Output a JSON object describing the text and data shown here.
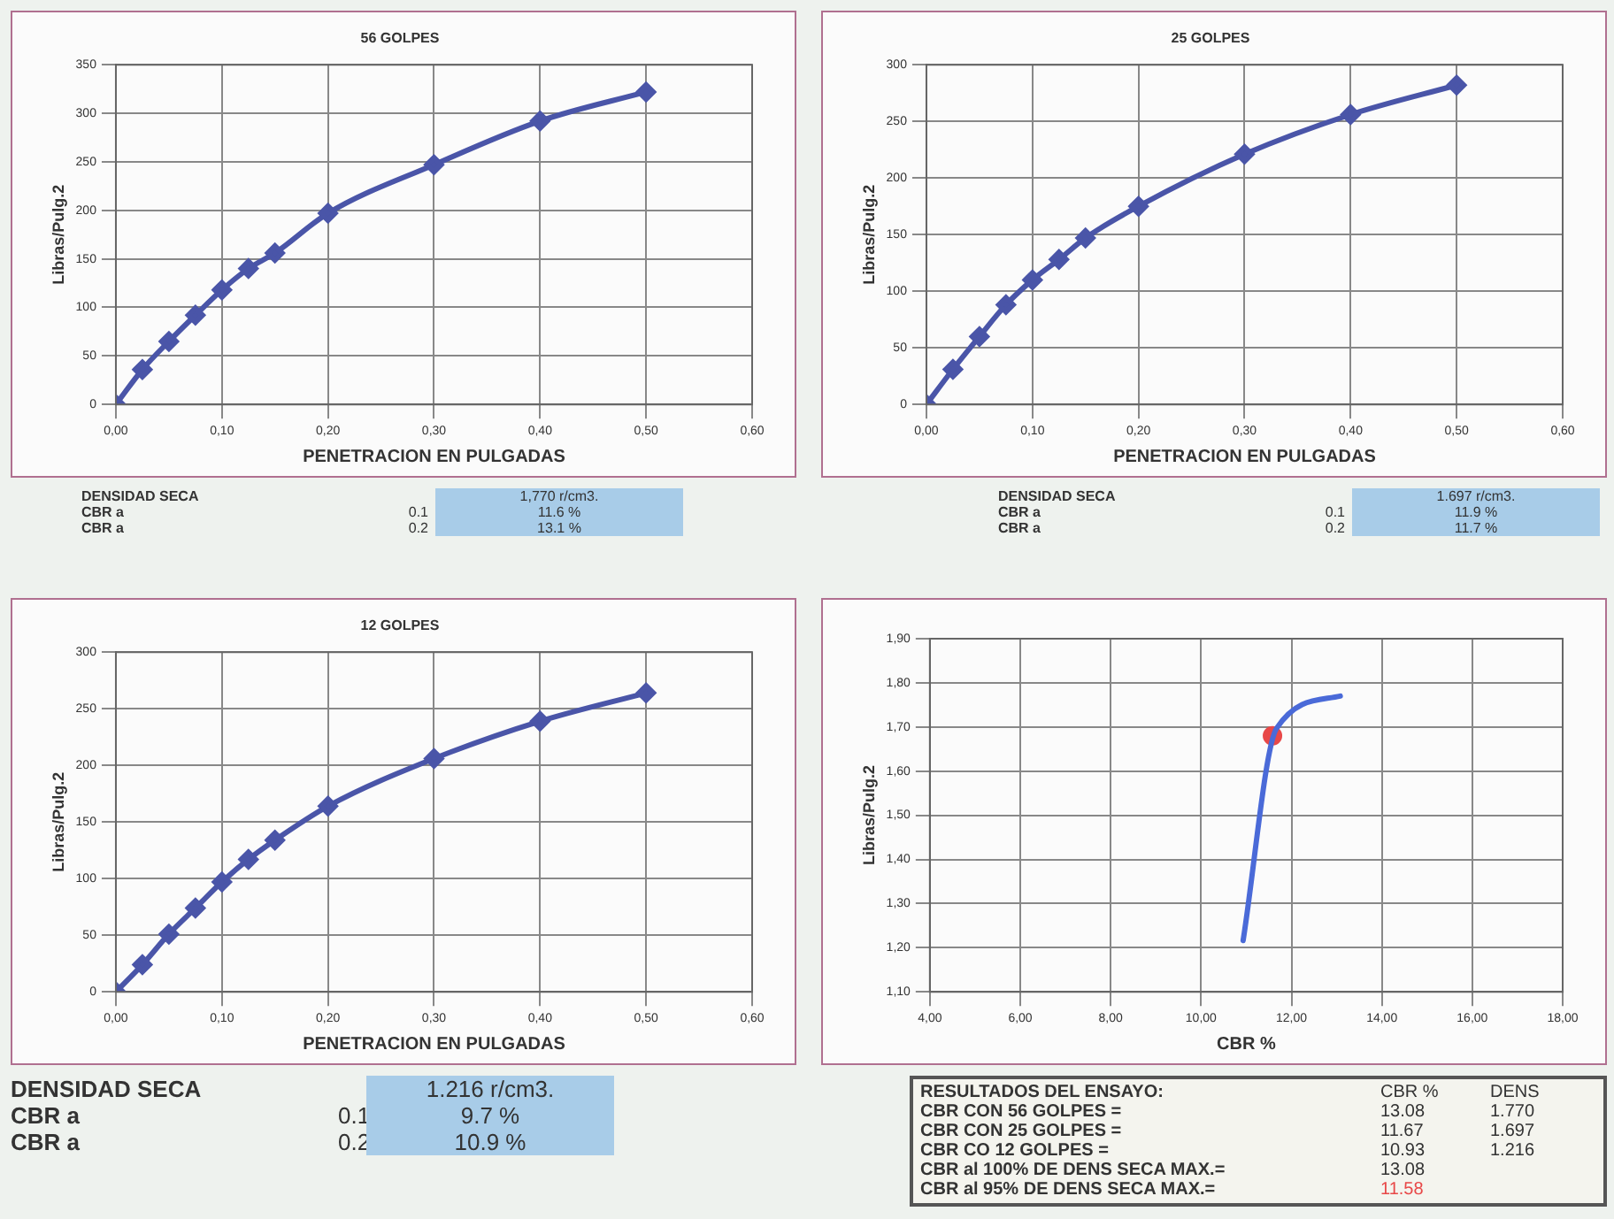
{
  "chart_data": [
    {
      "type": "line",
      "title": "56 GOLPES",
      "xlabel": "PENETRACION EN PULGADAS",
      "ylabel": "Libras/Pulg.2",
      "x": [
        0,
        0.025,
        0.05,
        0.075,
        0.1,
        0.125,
        0.15,
        0.2,
        0.3,
        0.4,
        0.5
      ],
      "series": [
        {
          "color": "#4a55a8",
          "values": [
            0,
            36,
            65,
            92,
            118,
            140,
            156,
            197,
            247,
            292,
            322
          ]
        }
      ],
      "xlim": [
        0,
        0.6
      ],
      "xticks": [
        {
          "value": 0,
          "label": "0,00"
        },
        {
          "value": 0.1,
          "label": "0,10"
        },
        {
          "value": 0.2,
          "label": "0,20"
        },
        {
          "value": 0.3,
          "label": "0,30"
        },
        {
          "value": 0.4,
          "label": "0,40"
        },
        {
          "value": 0.5,
          "label": "0,50"
        },
        {
          "value": 0.6,
          "label": "0,60"
        }
      ],
      "ylim": [
        0,
        350
      ],
      "yticks": [
        0,
        50,
        100,
        150,
        200,
        250,
        300,
        350
      ],
      "grid": true,
      "legend": false,
      "marker": "diamond",
      "line_style": "solid",
      "annotations": [
        "DENSIDAD SECA",
        "1,770 r/cm3.",
        "CBR a",
        "0.1",
        "11.6 %",
        "CBR a",
        "0.2",
        "13.1 %"
      ]
    },
    {
      "type": "line",
      "title": "25 GOLPES",
      "xlabel": "PENETRACION EN PULGADAS",
      "ylabel": "Libras/Pulg.2",
      "x": [
        0,
        0.025,
        0.05,
        0.075,
        0.1,
        0.125,
        0.15,
        0.2,
        0.3,
        0.4,
        0.5
      ],
      "series": [
        {
          "color": "#4a55a8",
          "values": [
            0,
            31,
            60,
            88,
            110,
            128,
            147,
            175,
            221,
            256,
            282
          ]
        }
      ],
      "xlim": [
        0,
        0.6
      ],
      "xticks": [
        {
          "value": 0,
          "label": "0,00"
        },
        {
          "value": 0.1,
          "label": "0,10"
        },
        {
          "value": 0.2,
          "label": "0,20"
        },
        {
          "value": 0.3,
          "label": "0,30"
        },
        {
          "value": 0.4,
          "label": "0,40"
        },
        {
          "value": 0.5,
          "label": "0,50"
        },
        {
          "value": 0.6,
          "label": "0,60"
        }
      ],
      "ylim": [
        0,
        300
      ],
      "yticks": [
        0,
        50,
        100,
        150,
        200,
        250,
        300
      ],
      "grid": true,
      "legend": false,
      "marker": "diamond",
      "line_style": "solid",
      "annotations": [
        "DENSIDAD SECA",
        "1.697 r/cm3.",
        "CBR a",
        "0.1",
        "11.9 %",
        "CBR a",
        "0.2",
        "11.7 %"
      ]
    },
    {
      "type": "line",
      "title": "12 GOLPES",
      "xlabel": "PENETRACION EN PULGADAS",
      "ylabel": "Libras/Pulg.2",
      "x": [
        0,
        0.025,
        0.05,
        0.075,
        0.1,
        0.125,
        0.15,
        0.2,
        0.3,
        0.4,
        0.5
      ],
      "series": [
        {
          "color": "#4a55a8",
          "values": [
            0,
            24,
            51,
            74,
            97,
            117,
            134,
            164,
            206,
            239,
            264
          ]
        }
      ],
      "xlim": [
        0,
        0.6
      ],
      "xticks": [
        {
          "value": 0,
          "label": "0,00"
        },
        {
          "value": 0.1,
          "label": "0,10"
        },
        {
          "value": 0.2,
          "label": "0,20"
        },
        {
          "value": 0.3,
          "label": "0,30"
        },
        {
          "value": 0.4,
          "label": "0,40"
        },
        {
          "value": 0.5,
          "label": "0,50"
        },
        {
          "value": 0.6,
          "label": "0,60"
        }
      ],
      "ylim": [
        0,
        300
      ],
      "yticks": [
        0,
        50,
        100,
        150,
        200,
        250,
        300
      ],
      "grid": true,
      "legend": false,
      "marker": "diamond",
      "line_style": "solid",
      "annotations": [
        "DENSIDAD SECA",
        "1.216 r/cm3.",
        "CBR a",
        "0.1",
        "9.7 %",
        "CBR a",
        "0.2",
        "10.9 %"
      ]
    },
    {
      "type": "line",
      "xlabel": "CBR %",
      "ylabel": "Libras/Pulg.2",
      "series": [
        {
          "color": "#4a6ad8",
          "x": [
            10.93,
            11.67,
            13.08
          ],
          "values": [
            1.216,
            1.697,
            1.77
          ]
        },
        {
          "type": "scatter",
          "color": "#e84848",
          "x": [
            11.58
          ],
          "values": [
            1.68
          ]
        }
      ],
      "xlim": [
        4,
        18
      ],
      "xticks": [
        {
          "value": 4,
          "label": "4,00"
        },
        {
          "value": 6,
          "label": "6,00"
        },
        {
          "value": 8,
          "label": "8,00"
        },
        {
          "value": 10,
          "label": "10,00"
        },
        {
          "value": 12,
          "label": "12,00"
        },
        {
          "value": 14,
          "label": "14,00"
        },
        {
          "value": 16,
          "label": "16,00"
        },
        {
          "value": 18,
          "label": "18,00"
        }
      ],
      "ylim": [
        1.1,
        1.9
      ],
      "yticks": [
        {
          "value": 1.1,
          "label": "1,10"
        },
        {
          "value": 1.2,
          "label": "1,20"
        },
        {
          "value": 1.3,
          "label": "1,30"
        },
        {
          "value": 1.4,
          "label": "1,40"
        },
        {
          "value": 1.5,
          "label": "1,50"
        },
        {
          "value": 1.6,
          "label": "1,60"
        },
        {
          "value": 1.7,
          "label": "1,70"
        },
        {
          "value": 1.8,
          "label": "1,80"
        },
        {
          "value": 1.9,
          "label": "1,90"
        }
      ],
      "grid": true,
      "legend": false,
      "line_style": "solid",
      "annotations": [
        "RESULTADOS DEL ENSAYO:",
        "CBR %",
        "DENS",
        "CBR CON 56 GOLPES =",
        "13.08",
        "1.770",
        "CBR CON 25 GOLPES =",
        "11.67",
        "1.697",
        "CBR CO 12 GOLPES =",
        "10.93",
        "1.216",
        "CBR al 100% DE DENS SECA MAX.=",
        "13.08",
        "CBR al 95% DE DENS SECA MAX.=",
        "11.58"
      ]
    }
  ]
}
